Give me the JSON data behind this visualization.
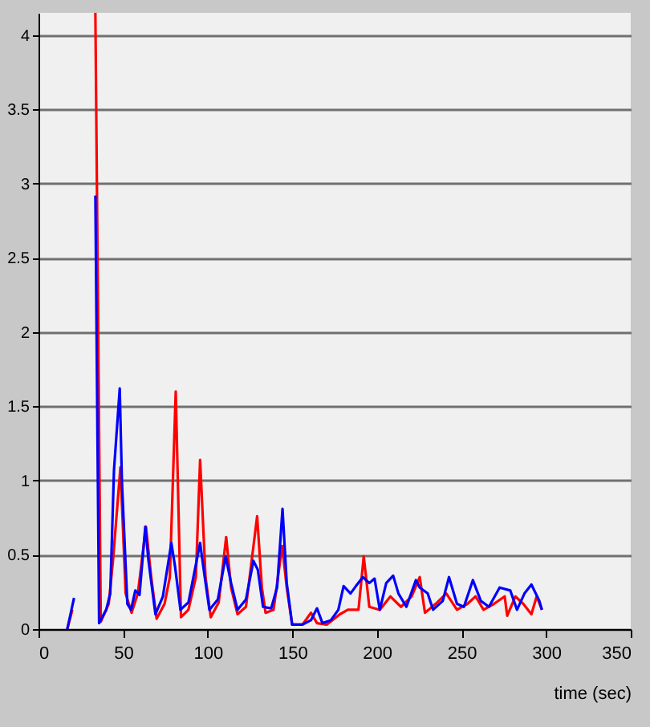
{
  "chart_data": {
    "type": "line",
    "xlabel": "time (sec)",
    "xlim": [
      0,
      350
    ],
    "xticks": [
      0,
      50,
      100,
      150,
      200,
      250,
      300,
      350
    ],
    "ylim": [
      0,
      4.15
    ],
    "yticks": [
      0,
      0.5,
      1,
      1.5,
      2,
      2.5,
      3,
      3.5,
      4
    ],
    "grid": "y",
    "marker": "none",
    "line_style": "solid",
    "series": [
      {
        "color": "#ff0000",
        "x": [
          17,
          20,
          25,
          33.6,
          36.8,
          41.5,
          44,
          48.4,
          51.5,
          55,
          58.7,
          63.5,
          66.6,
          69.8,
          74.5,
          77.6,
          81.1,
          84.2,
          88.6,
          93,
          95.5,
          98.7,
          101.8,
          106.5,
          110.9,
          113.8,
          117.6,
          122.6,
          129.2,
          132,
          134.2,
          138.9,
          144,
          146.7,
          149.9,
          156,
          161,
          164.6,
          170.3,
          178.1,
          182.8,
          189.1,
          192.2,
          195.5,
          201.7,
          208,
          214.2,
          220.5,
          225.3,
          228.4,
          234.7,
          241,
          247.3,
          253.5,
          258.3,
          263,
          269.2,
          275.5,
          277,
          281.8,
          286.5,
          291.3,
          294.4,
          297.5
        ],
        "values": [
          0,
          0.13,
          null,
          4.15,
          0.05,
          0.17,
          0.46,
          1.09,
          0.24,
          0.11,
          0.24,
          0.69,
          0.35,
          0.07,
          0.17,
          0.35,
          1.6,
          0.08,
          0.13,
          0.35,
          1.14,
          0.35,
          0.08,
          0.18,
          0.62,
          0.28,
          0.1,
          0.15,
          0.76,
          0.28,
          0.11,
          0.13,
          0.56,
          0.28,
          0.03,
          0.03,
          0.11,
          0.04,
          0.03,
          0.1,
          0.13,
          0.13,
          0.49,
          0.15,
          0.13,
          0.22,
          0.15,
          0.22,
          0.35,
          0.11,
          0.17,
          0.24,
          0.13,
          0.17,
          0.22,
          0.13,
          0.17,
          0.22,
          0.09,
          0.22,
          0.17,
          0.1,
          0.22,
          0.13
        ]
      },
      {
        "color": "#0000ff",
        "x": [
          17,
          21,
          25,
          33.6,
          35.8,
          40,
          42.4,
          44.6,
          48,
          49.3,
          52.5,
          54.7,
          57.2,
          59.7,
          63.1,
          65,
          69.1,
          73.5,
          78.5,
          80.7,
          83.9,
          88.6,
          95.5,
          98,
          101,
          106,
          110.6,
          113.8,
          117.6,
          122.6,
          127,
          129.6,
          132.7,
          137.5,
          141,
          144.2,
          146.7,
          149.9,
          156,
          161,
          164.6,
          167.8,
          172.8,
          177.2,
          180.3,
          184.4,
          187.6,
          191.7,
          195.5,
          198.6,
          201.7,
          205.5,
          209.6,
          212.7,
          217.4,
          223,
          225.3,
          230,
          233.2,
          238.9,
          242.6,
          247.3,
          251.4,
          256.7,
          261.4,
          266.2,
          272.5,
          278.8,
          282.8,
          287.2,
          291.3,
          296,
          297.5
        ],
        "values": [
          0,
          0.21,
          null,
          2.92,
          0.04,
          0.13,
          0.24,
          1.07,
          1.62,
          0.99,
          0.17,
          0.13,
          0.26,
          0.23,
          0.69,
          0.46,
          0.1,
          0.22,
          0.58,
          0.42,
          0.13,
          0.18,
          0.58,
          0.37,
          0.13,
          0.2,
          0.49,
          0.31,
          0.13,
          0.2,
          0.46,
          0.4,
          0.15,
          0.14,
          0.28,
          0.81,
          0.31,
          0.03,
          0.03,
          0.06,
          0.14,
          0.04,
          0.06,
          0.13,
          0.29,
          0.24,
          0.29,
          0.35,
          0.31,
          0.34,
          0.13,
          0.31,
          0.36,
          0.24,
          0.15,
          0.33,
          0.28,
          0.24,
          0.13,
          0.19,
          0.35,
          0.17,
          0.15,
          0.33,
          0.19,
          0.15,
          0.28,
          0.26,
          0.13,
          0.24,
          0.3,
          0.19,
          0.13
        ]
      }
    ]
  }
}
